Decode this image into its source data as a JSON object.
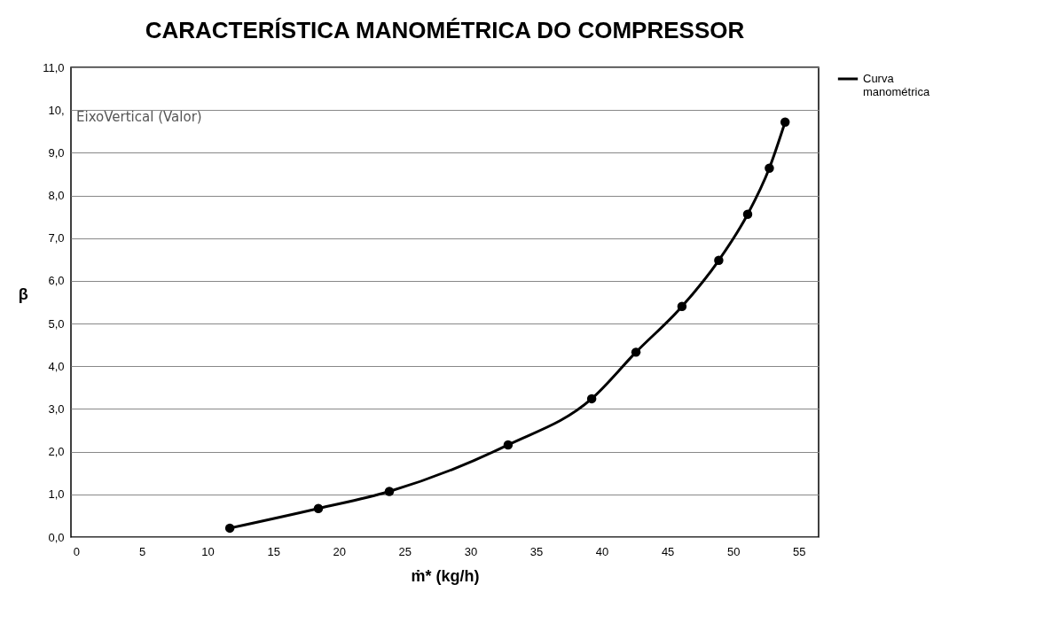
{
  "chart_data": {
    "type": "line",
    "title": "CARACTERÍSTICA MANOMÉTRICA DO COMPRESSOR",
    "xlabel": "ṁ* (kg/h)",
    "ylabel": "β",
    "x": [
      11.69,
      18.43,
      23.83,
      32.87,
      39.23,
      42.6,
      46.1,
      48.9,
      51.1,
      52.75,
      53.95
    ],
    "series": [
      {
        "name": "Curva manométrica",
        "color": "#000000",
        "values": [
          0.21,
          0.67,
          1.07,
          2.16,
          3.24,
          4.33,
          5.4,
          6.48,
          7.56,
          8.64,
          9.72
        ]
      }
    ],
    "xlim": [
      -0.4,
      56.5
    ],
    "xticks": [
      0,
      5,
      10,
      15,
      20,
      25,
      30,
      35,
      40,
      45,
      50,
      55
    ],
    "ylim": [
      0,
      11
    ],
    "yticks": [
      {
        "value": 0,
        "label": "0,0"
      },
      {
        "value": 1,
        "label": "1,0"
      },
      {
        "value": 2,
        "label": "2,0"
      },
      {
        "value": 3,
        "label": "3,0"
      },
      {
        "value": 4,
        "label": "4,0"
      },
      {
        "value": 5,
        "label": "5,0"
      },
      {
        "value": 6,
        "label": "6,0"
      },
      {
        "value": 7,
        "label": "7,0"
      },
      {
        "value": 8,
        "label": "8,0"
      },
      {
        "value": 9,
        "label": "9,0"
      },
      {
        "value": 10,
        "label": "10,"
      },
      {
        "value": 11,
        "label": "11,0"
      }
    ],
    "grid": "y",
    "legend": "right",
    "marker": "circle",
    "line_style": "solid",
    "annotations": [
      "EixoVertical (Valor)"
    ]
  }
}
